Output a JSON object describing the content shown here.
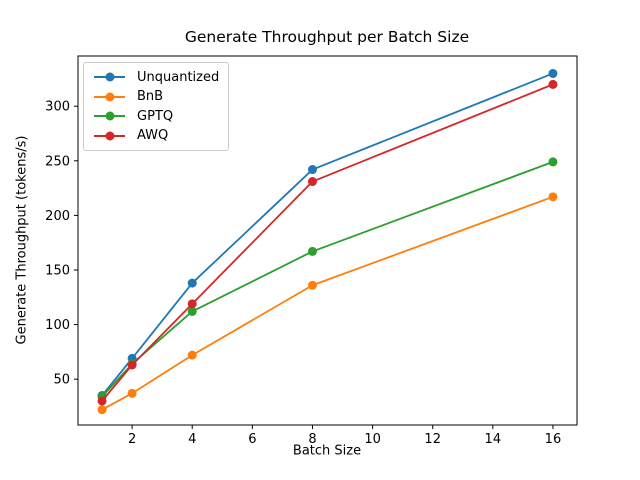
{
  "chart_data": {
    "type": "line",
    "title": "Generate Throughput per Batch Size",
    "xlabel": "Batch Size",
    "ylabel": "Generate Throughput (tokens/s)",
    "x": [
      1,
      2,
      4,
      8,
      16
    ],
    "series": [
      {
        "name": "Unquantized",
        "color": "#1f77b4",
        "values": [
          35,
          69,
          138,
          242,
          330
        ]
      },
      {
        "name": "BnB",
        "color": "#ff7f0e",
        "values": [
          22,
          37,
          72,
          136,
          217
        ]
      },
      {
        "name": "GPTQ",
        "color": "#2ca02c",
        "values": [
          34,
          64,
          112,
          167,
          249
        ]
      },
      {
        "name": "AWQ",
        "color": "#d62728",
        "values": [
          30,
          63,
          119,
          231,
          320
        ]
      }
    ],
    "x_ticks": [
      2,
      4,
      6,
      8,
      10,
      12,
      14,
      16
    ],
    "y_ticks": [
      50,
      100,
      150,
      200,
      250,
      300
    ],
    "xlim": [
      0.2,
      16.8
    ],
    "ylim": [
      8,
      346
    ],
    "grid": false,
    "marker": "o",
    "legend_position": "upper left",
    "axis_color": "#000000",
    "background_color": "#ffffff"
  }
}
